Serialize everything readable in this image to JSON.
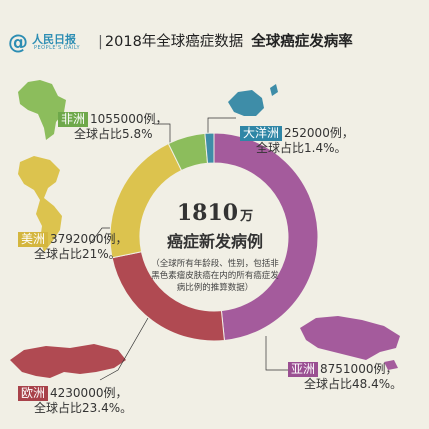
{
  "header": {
    "logo_cn": "人民日报",
    "logo_en": "PEOPLE'S DAILY",
    "separator": "|",
    "title_left": "2018年全球癌症数据",
    "title_right": "全球癌症发病率"
  },
  "center": {
    "number": "1810",
    "unit": "万",
    "subtitle": "癌症新发病例",
    "note": "（全球所有年龄段、性别，包括非黑色素瘤皮肤癌在内的所有癌症发病比例的推算数据）"
  },
  "labels": {
    "africa": {
      "name": "非洲",
      "count": "1055000例，",
      "share": "全球占比5.8%"
    },
    "oceania": {
      "name": "大洋洲",
      "count": "252000例，",
      "share": "全球占比1.4%。"
    },
    "americas": {
      "name": "美洲",
      "count": "3792000例，",
      "share": "全球占比21%。"
    },
    "europe": {
      "name": "欧洲",
      "count": "4230000例，",
      "share": "全球占比23.4%。"
    },
    "asia": {
      "name": "亚洲",
      "count": "8751000例，",
      "share": "全球占比48.4%。"
    }
  },
  "colors": {
    "background": "#f1efe5",
    "asia": "#a45b9c",
    "europe": "#b04a52",
    "americas": "#dcc34e",
    "africa": "#8cbd5c",
    "oceania": "#3e8da8",
    "africa_tag": "#6ea84a",
    "oceania_tag": "#2f86a6",
    "americas_tag": "#d4b63e",
    "europe_tag": "#a8424a",
    "asia_tag": "#9a4f92"
  },
  "chart_data": {
    "type": "pie",
    "style": "donut",
    "total": 18100000,
    "series": [
      {
        "name": "亚洲",
        "value": 8751000,
        "share": 48.4
      },
      {
        "name": "欧洲",
        "value": 4230000,
        "share": 23.4
      },
      {
        "name": "美洲",
        "value": 3792000,
        "share": 21.0
      },
      {
        "name": "非洲",
        "value": 1055000,
        "share": 5.8
      },
      {
        "name": "大洋洲",
        "value": 252000,
        "share": 1.4
      }
    ]
  }
}
